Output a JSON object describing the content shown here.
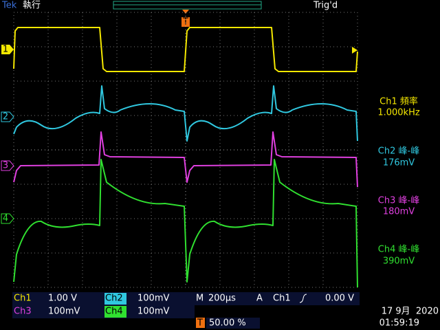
{
  "header": {
    "brand": "Tek",
    "status": "執行",
    "trigger_state": "Trig'd",
    "trigger_marker": "T"
  },
  "channel_markers": [
    "1",
    "2",
    "3",
    "4"
  ],
  "measurements": [
    {
      "label": "Ch1 頻率",
      "value": "1.000kHz"
    },
    {
      "label": "Ch2 峰-峰",
      "value": "176mV"
    },
    {
      "label": "Ch3 峰-峰",
      "value": "180mV"
    },
    {
      "label": "Ch4 峰-峰",
      "value": "390mV"
    }
  ],
  "footer": {
    "ch1_label": "Ch1",
    "ch1_scale": "1.00 V",
    "ch2_label": "Ch2",
    "ch2_scale": "100mV",
    "timebase_label": "M",
    "timebase": "200µs",
    "trigger_mode": "A",
    "trigger_source": "Ch1",
    "trigger_level": "0.00 V",
    "ch3_label": "Ch3",
    "ch3_scale": "100mV",
    "ch4_label": "Ch4",
    "ch4_scale": "100mV",
    "trigger_position": "50.00 %",
    "date": "17 9月  2020",
    "time": "01:59:19"
  }
}
